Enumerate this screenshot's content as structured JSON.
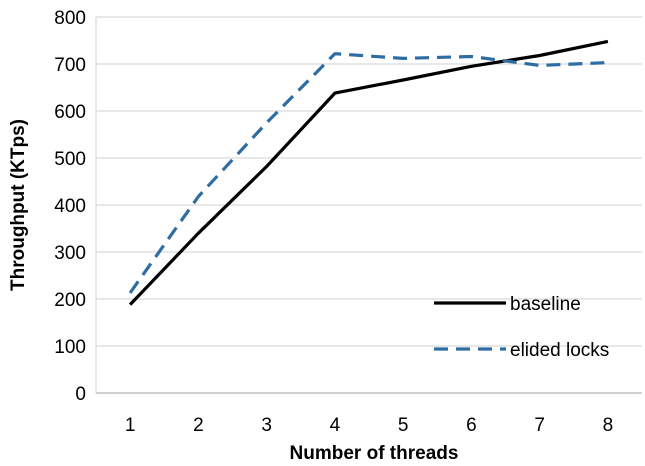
{
  "chart_data": {
    "type": "line",
    "xlabel": "Number of threads",
    "ylabel": "Throughput (KTps)",
    "x": [
      1,
      2,
      3,
      4,
      5,
      6,
      7,
      8
    ],
    "ylim": [
      0,
      800
    ],
    "yticks": [
      0,
      100,
      200,
      300,
      400,
      500,
      600,
      700,
      800
    ],
    "grid": "horizontal",
    "legend_position": "bottom-right",
    "series": [
      {
        "name": "baseline",
        "color": "#000000",
        "dash": "solid",
        "values": [
          188,
          340,
          482,
          638,
          666,
          695,
          718,
          748
        ]
      },
      {
        "name": "elided locks",
        "color": "#2E6DA4",
        "dash": "dashed",
        "values": [
          213,
          418,
          575,
          722,
          712,
          716,
          697,
          703
        ]
      }
    ]
  }
}
